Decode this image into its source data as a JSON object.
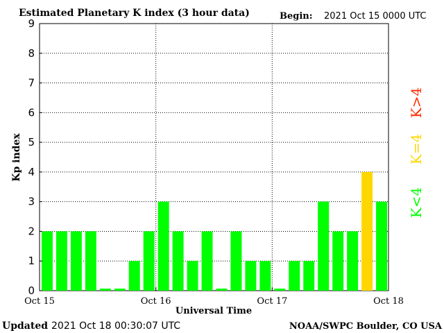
{
  "header": {
    "title": "Estimated Planetary K index (3 hour data)",
    "begin_label": "Begin:",
    "begin_value": "2021 Oct 15 0000 UTC"
  },
  "footer": {
    "updated_label": "Updated",
    "updated_value": "2021 Oct 18 00:30:07 UTC",
    "source": "NOAA/SWPC Boulder, CO USA"
  },
  "legend": {
    "items": [
      {
        "label": "K<4",
        "color": "#00ff00"
      },
      {
        "label": "K=4",
        "color": "#ffd700"
      },
      {
        "label": "K>4",
        "color": "#ff2a00"
      }
    ]
  },
  "chart_data": {
    "type": "bar",
    "title": "Estimated Planetary K index (3 hour data)",
    "xlabel": "Universal Time",
    "ylabel": "Kp index",
    "ylim": [
      0,
      9
    ],
    "yticks": [
      "0",
      "1",
      "2",
      "3",
      "4",
      "5",
      "6",
      "7",
      "8",
      "9"
    ],
    "x_tick_labels": [
      "Oct 15",
      "Oct 16",
      "Oct 17",
      "Oct 18"
    ],
    "bar_interval_hours": 3,
    "values": [
      2,
      2,
      2,
      2,
      0,
      0,
      1,
      2,
      3,
      2,
      1,
      2,
      0,
      2,
      1,
      1,
      0,
      1,
      1,
      3,
      2,
      2,
      4,
      3
    ],
    "colors": {
      "below_4": "#00ff00",
      "equal_4": "#ffd700",
      "above_4": "#ff2a00"
    },
    "grid": "dotted"
  }
}
